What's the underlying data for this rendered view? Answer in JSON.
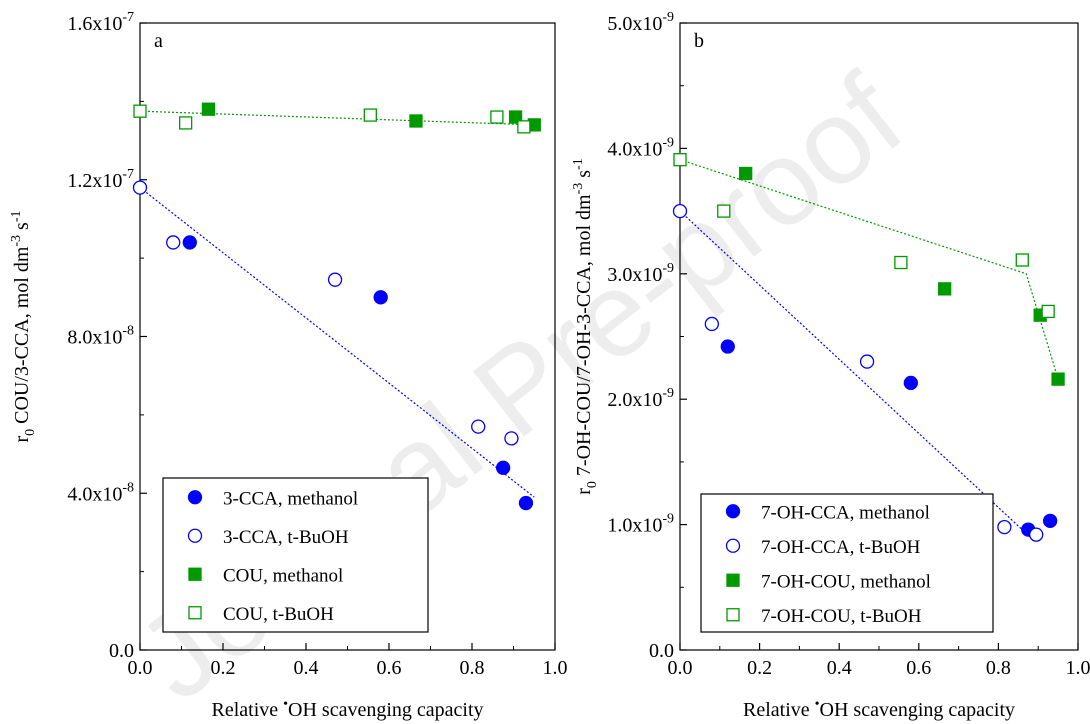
{
  "colors": {
    "blue": "#0000ff",
    "green": "#009900",
    "axis": "#000000",
    "watermark": "#cccccc"
  },
  "watermark_text": "Journal Pre-proof",
  "chart_data": [
    {
      "type": "scatter",
      "panel_label": "a",
      "xlabel": "Relative •OH scavenging capacity",
      "ylabel": "r0 COU/3-CCA, mol dm-3 s-1",
      "xlim": [
        0.0,
        1.0
      ],
      "ylim": [
        0.0,
        1.6e-07
      ],
      "x_ticks": [
        0.0,
        0.2,
        0.4,
        0.6,
        0.8,
        1.0
      ],
      "x_tick_labels": [
        "0.0",
        "0.2",
        "0.4",
        "0.6",
        "0.8",
        "1.0"
      ],
      "y_ticks": [
        {
          "value": 0.0,
          "mantissa": "0.0",
          "exp": ""
        },
        {
          "value": 4e-08,
          "mantissa": "4.0x10",
          "exp": "-8"
        },
        {
          "value": 8e-08,
          "mantissa": "8.0x10",
          "exp": "-8"
        },
        {
          "value": 1.2e-07,
          "mantissa": "1.2x10",
          "exp": "-7"
        },
        {
          "value": 1.6e-07,
          "mantissa": "1.6x10",
          "exp": "-7"
        }
      ],
      "legend_position": "bottom-left",
      "series": [
        {
          "name": "3-CCA, methanol",
          "marker": "circle",
          "filled": true,
          "color": "#0000ff",
          "x": [
            0.12,
            0.58,
            0.875,
            0.93
          ],
          "y": [
            1.04e-07,
            9e-08,
            4.65e-08,
            3.75e-08
          ]
        },
        {
          "name": "3-CCA, t-BuOH",
          "marker": "circle",
          "filled": false,
          "color": "#0000ff",
          "x": [
            0.0,
            0.08,
            0.47,
            0.815,
            0.895
          ],
          "y": [
            1.18e-07,
            1.04e-07,
            9.45e-08,
            5.7e-08,
            5.4e-08
          ]
        },
        {
          "name": "COU, methanol",
          "marker": "square",
          "filled": true,
          "color": "#009900",
          "x": [
            0.165,
            0.665,
            0.905,
            0.95
          ],
          "y": [
            1.38e-07,
            1.35e-07,
            1.36e-07,
            1.34e-07
          ]
        },
        {
          "name": "COU, t-BuOH",
          "marker": "square",
          "filled": false,
          "color": "#009900",
          "x": [
            0.0,
            0.11,
            0.555,
            0.86,
            0.925
          ],
          "y": [
            1.375e-07,
            1.345e-07,
            1.365e-07,
            1.36e-07,
            1.335e-07
          ]
        }
      ],
      "fit_lines": [
        {
          "color": "#0000ff",
          "x": [
            0.0,
            0.95
          ],
          "y": [
            1.18e-07,
            3.9e-08
          ]
        },
        {
          "color": "#009900",
          "x": [
            0.0,
            0.95
          ],
          "y": [
            1.375e-07,
            1.34e-07
          ]
        }
      ]
    },
    {
      "type": "scatter",
      "panel_label": "b",
      "xlabel": "Relative •OH scavenging capacity",
      "ylabel": "r0 7-OH-COU/7-OH-3-CCA, mol dm-3 s-1",
      "xlim": [
        0.0,
        1.0
      ],
      "ylim": [
        0.0,
        5e-09
      ],
      "x_ticks": [
        0.0,
        0.2,
        0.4,
        0.6,
        0.8,
        1.0
      ],
      "x_tick_labels": [
        "0.0",
        "0.2",
        "0.4",
        "0.6",
        "0.8",
        "1.0"
      ],
      "y_ticks": [
        {
          "value": 0.0,
          "mantissa": "0.0",
          "exp": ""
        },
        {
          "value": 1e-09,
          "mantissa": "1.0x10",
          "exp": "-9"
        },
        {
          "value": 2e-09,
          "mantissa": "2.0x10",
          "exp": "-9"
        },
        {
          "value": 3e-09,
          "mantissa": "3.0x10",
          "exp": "-9"
        },
        {
          "value": 4e-09,
          "mantissa": "4.0x10",
          "exp": "-9"
        },
        {
          "value": 5e-09,
          "mantissa": "5.0x10",
          "exp": "-9"
        }
      ],
      "legend_position": "bottom-left",
      "series": [
        {
          "name": "7-OH-CCA, methanol",
          "marker": "circle",
          "filled": true,
          "color": "#0000ff",
          "x": [
            0.12,
            0.58,
            0.875,
            0.93
          ],
          "y": [
            2.42e-09,
            2.13e-09,
            9.6e-10,
            1.03e-09
          ]
        },
        {
          "name": "7-OH-CCA, t-BuOH",
          "marker": "circle",
          "filled": false,
          "color": "#0000ff",
          "x": [
            0.0,
            0.08,
            0.47,
            0.815,
            0.895
          ],
          "y": [
            3.5e-09,
            2.6e-09,
            2.3e-09,
            9.8e-10,
            9.2e-10
          ]
        },
        {
          "name": "7-OH-COU, methanol",
          "marker": "square",
          "filled": true,
          "color": "#009900",
          "x": [
            0.165,
            0.665,
            0.905,
            0.95
          ],
          "y": [
            3.8e-09,
            2.88e-09,
            2.67e-09,
            2.16e-09
          ]
        },
        {
          "name": "7-OH-COU, t-BuOH",
          "marker": "square",
          "filled": false,
          "color": "#009900",
          "x": [
            0.0,
            0.11,
            0.555,
            0.86,
            0.925
          ],
          "y": [
            3.91e-09,
            3.5e-09,
            3.09e-09,
            3.11e-09,
            2.7e-09
          ]
        }
      ],
      "fit_lines": [
        {
          "color": "#0000ff",
          "x": [
            0.0,
            0.88
          ],
          "y": [
            3.5e-09,
            9e-10
          ]
        },
        {
          "color": "#009900",
          "x": [
            0.0,
            0.87,
            0.95
          ],
          "y": [
            3.91e-09,
            3e-09,
            2.16e-09
          ]
        }
      ]
    }
  ]
}
